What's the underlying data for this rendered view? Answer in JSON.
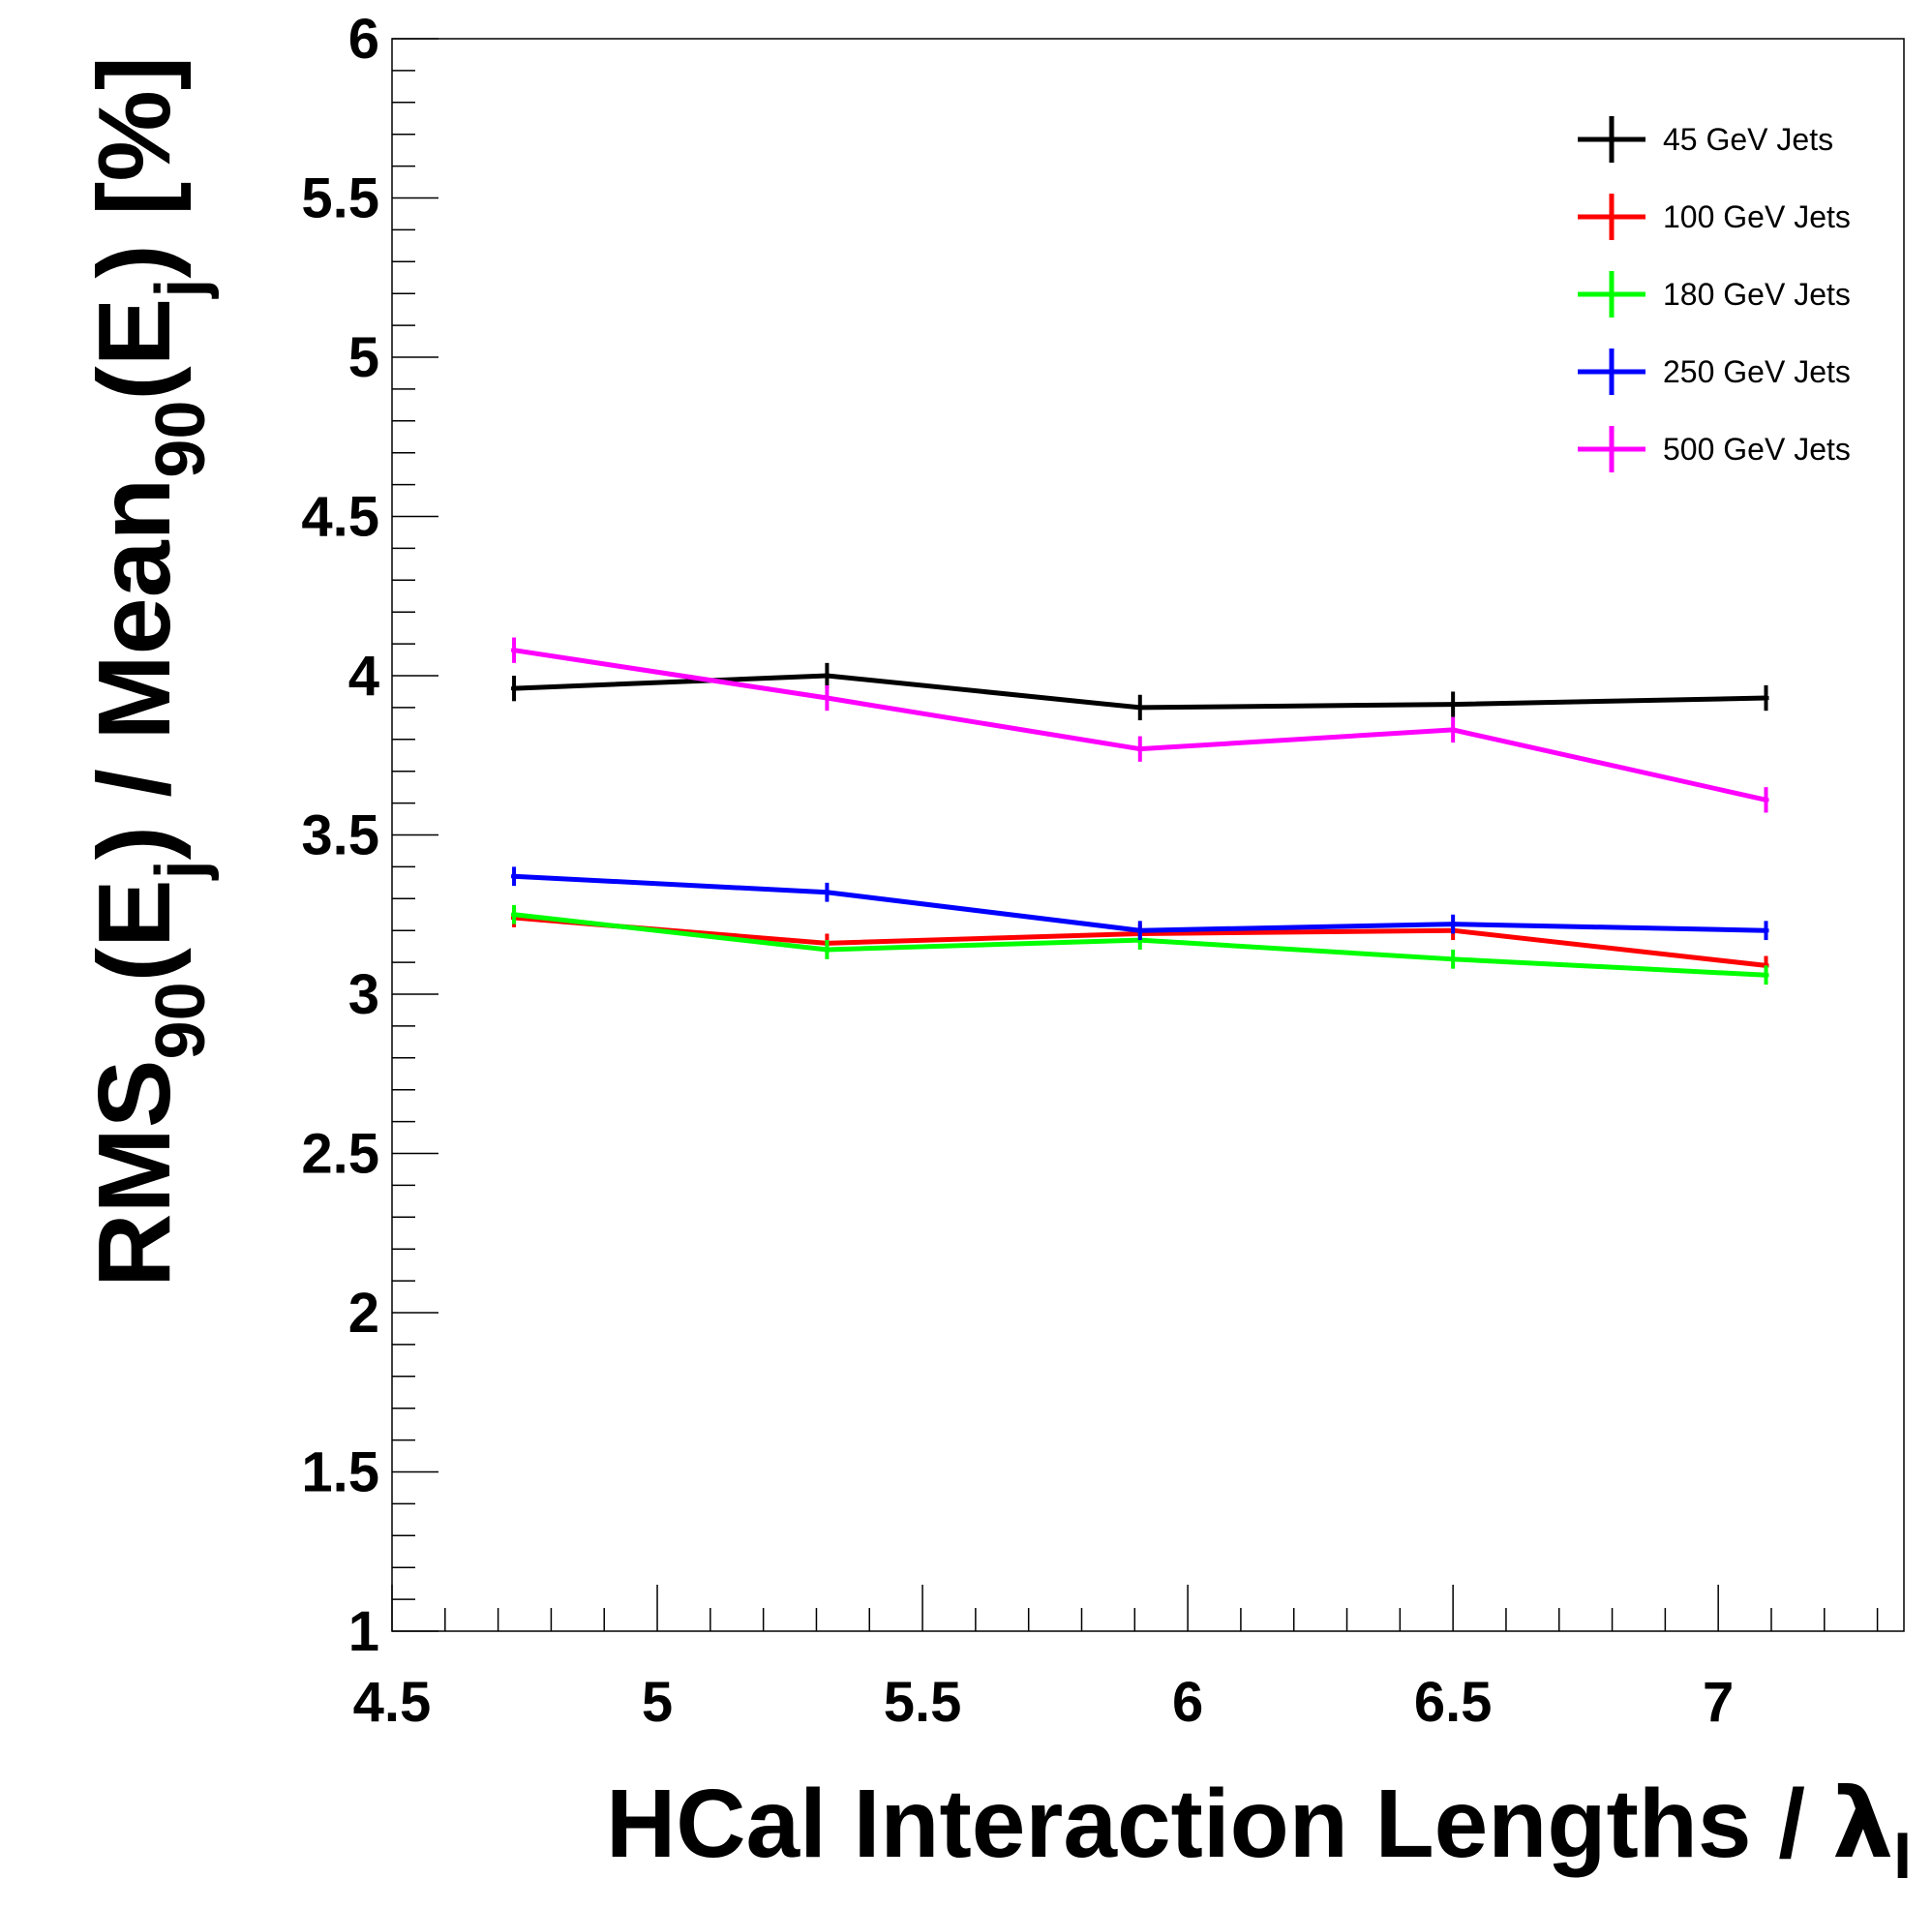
{
  "chart_data": {
    "type": "line",
    "title": "",
    "xlabel": "HCal Interaction Lengths / ",
    "xlabel_symbol": "λ",
    "xlabel_symbol_sub": "I",
    "ylabel": {
      "part1": "RMS",
      "sub1": "90",
      "part2": "(E",
      "sub2": "j",
      "part3": ") / Mean",
      "sub3": "90",
      "part4": "(E",
      "sub4": "j",
      "part5": ") [%]"
    },
    "xlim": [
      4.5,
      7.35
    ],
    "ylim": [
      1,
      6
    ],
    "x_ticks": [
      "4.5",
      "5",
      "5.5",
      "6",
      "6.5",
      "7"
    ],
    "y_ticks": [
      "1",
      "1.5",
      "2",
      "2.5",
      "3",
      "3.5",
      "4",
      "4.5",
      "5",
      "5.5",
      "6"
    ],
    "grid": false,
    "legend_position": "top-right",
    "x": [
      4.73,
      5.32,
      5.91,
      6.5,
      7.09
    ],
    "series": [
      {
        "name": "45 GeV Jets",
        "color": "#000000",
        "values": [
          3.96,
          4.0,
          3.9,
          3.91,
          3.93
        ],
        "errors": [
          0.04,
          0.04,
          0.04,
          0.04,
          0.04
        ]
      },
      {
        "name": "100 GeV Jets",
        "color": "#ff0000",
        "values": [
          3.24,
          3.16,
          3.19,
          3.2,
          3.09
        ],
        "errors": [
          0.03,
          0.03,
          0.03,
          0.03,
          0.03
        ]
      },
      {
        "name": "180 GeV Jets",
        "color": "#00ff00",
        "values": [
          3.25,
          3.14,
          3.17,
          3.11,
          3.06
        ],
        "errors": [
          0.03,
          0.03,
          0.03,
          0.03,
          0.03
        ]
      },
      {
        "name": "250 GeV Jets",
        "color": "#0000ff",
        "values": [
          3.37,
          3.32,
          3.2,
          3.22,
          3.2
        ],
        "errors": [
          0.03,
          0.03,
          0.03,
          0.03,
          0.03
        ]
      },
      {
        "name": "500 GeV Jets",
        "color": "#ff00ff",
        "values": [
          4.08,
          3.93,
          3.77,
          3.83,
          3.61
        ],
        "errors": [
          0.04,
          0.04,
          0.04,
          0.04,
          0.04
        ]
      }
    ]
  }
}
